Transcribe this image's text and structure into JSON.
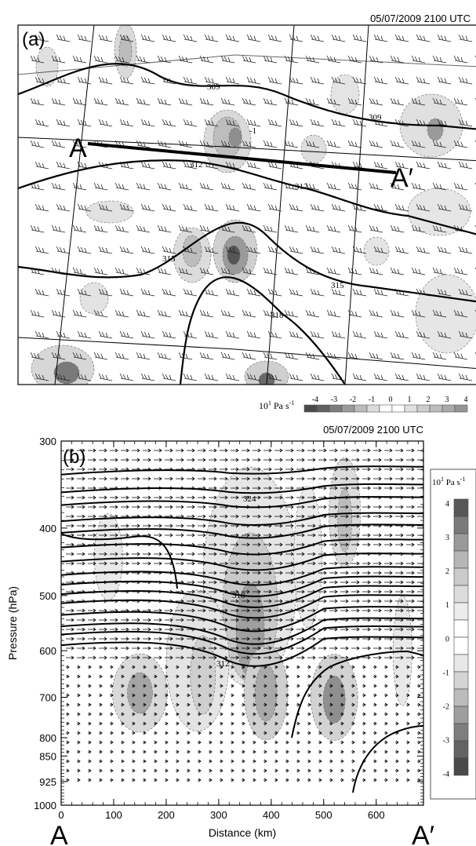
{
  "panel_a": {
    "timestamp": "05/07/2009  2100 UTC",
    "panel_label": "(a)",
    "section_start": "A",
    "section_end": "A′",
    "contour_labels": [
      "309",
      "309",
      "312",
      "312",
      "315",
      "315",
      "318",
      "-1"
    ],
    "colorbar": {
      "unit": "10",
      "unit_exp": "1",
      "unit_rest": " Pa s",
      "unit_exp2": "-1",
      "tick_labels": [
        "-4",
        "-3",
        "-2",
        "-1",
        "0",
        "1",
        "2",
        "3",
        "4"
      ]
    }
  },
  "panel_b": {
    "timestamp": "05/07/2009  2100 UTC",
    "panel_label": "(b)",
    "xlabel": "Distance (km)",
    "ylabel": "Pressure (hPa)",
    "x_start_label": "A",
    "x_end_label": "A′",
    "contour_labels": [
      "324",
      "318",
      "312"
    ],
    "colorbar": {
      "unit": "10",
      "unit_exp": "1",
      "unit_rest": " Pa s",
      "unit_exp2": "-1",
      "tick_labels": [
        "4",
        "3",
        "2",
        "1",
        "0",
        "-1",
        "-2",
        "-3",
        "-4"
      ]
    }
  },
  "chart_data": [
    {
      "type": "heatmap",
      "panel": "(a)",
      "description_fields": "map of vertical motion (shaded, 10^1 Pa s^-1) with isentropes and wind barbs",
      "contours": [
        309,
        309,
        312,
        312,
        315,
        315,
        318
      ],
      "colorbar_values": [
        -4,
        -3,
        -2,
        -1,
        0,
        1,
        2,
        3,
        4
      ]
    },
    {
      "type": "heatmap",
      "panel": "(b)",
      "xlabel": "Distance (km)",
      "ylabel": "Pressure (hPa)",
      "x_ticks": [
        0,
        100,
        200,
        300,
        400,
        500,
        600
      ],
      "xlim": [
        0,
        690
      ],
      "y_ticks": [
        300,
        400,
        500,
        600,
        700,
        800,
        850,
        925,
        1000
      ],
      "ylim": [
        1000,
        300
      ],
      "y_scale": "log",
      "contours": [
        324,
        318,
        312
      ],
      "colorbar_values": [
        4,
        3,
        2,
        1,
        0,
        -1,
        -2,
        -3,
        -4
      ]
    }
  ],
  "colors": {
    "shade_levels": [
      "#3a3a3a",
      "#5a5a5a",
      "#7a7a7a",
      "#9a9a9a",
      "#bcbcbc",
      "#ffffff",
      "#e2e2e2",
      "#cfcfcf",
      "#bdbdbd",
      "#a8a8a8"
    ]
  }
}
